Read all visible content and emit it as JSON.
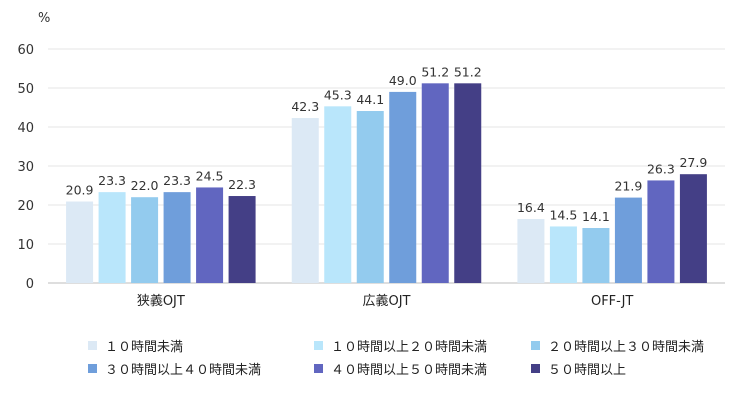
{
  "chart_data": {
    "type": "bar",
    "y_unit": "%",
    "ylim": [
      0,
      60
    ],
    "yticks": [
      0,
      10,
      20,
      30,
      40,
      50,
      60
    ],
    "grid": true,
    "legend_position": "bottom",
    "categories": [
      "狭義OJT",
      "広義OJT",
      "OFF-JT"
    ],
    "series": [
      {
        "name": "１０時間未満",
        "color": "#dce9f5",
        "values": [
          20.9,
          42.3,
          16.4
        ]
      },
      {
        "name": "１０時間以上２０時間未満",
        "color": "#b9e6fb",
        "values": [
          23.3,
          45.3,
          14.5
        ]
      },
      {
        "name": "２０時間以上３０時間未満",
        "color": "#93cbee",
        "values": [
          22.0,
          44.1,
          14.1
        ]
      },
      {
        "name": "３０時間以上４０時間未満",
        "color": "#6f9edb",
        "values": [
          23.3,
          49.0,
          21.9
        ]
      },
      {
        "name": "４０時間以上５０時間未満",
        "color": "#6166c0",
        "values": [
          24.5,
          51.2,
          26.3
        ]
      },
      {
        "name": "５０時間以上",
        "color": "#443f86",
        "values": [
          22.3,
          51.2,
          27.9
        ]
      }
    ]
  }
}
